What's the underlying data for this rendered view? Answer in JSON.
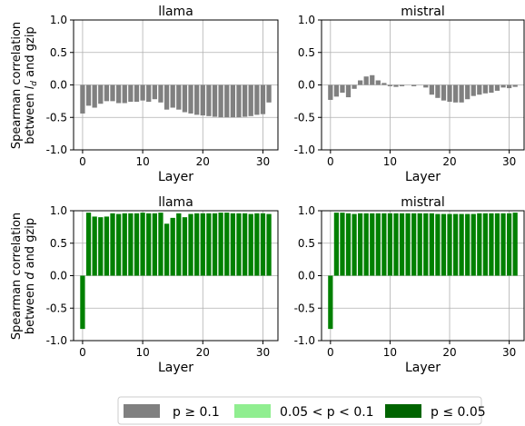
{
  "colors": {
    "not_significant": "#808080",
    "weakly_significant": "#90ee90",
    "significant": "#008000",
    "legend_significant": "#006400",
    "grid": "#b0b0b0",
    "axis": "#000000"
  },
  "figure": {
    "ylabel_top_line1": "Spearman correlation",
    "ylabel_top_line2_prefix": "between ",
    "ylabel_top_line2_symbol": "l",
    "ylabel_top_line2_sub": "d",
    "ylabel_top_line2_suffix": " and gzip",
    "ylabel_bottom_line1": "Spearman correlation",
    "ylabel_bottom_line2_prefix": "between ",
    "ylabel_bottom_line2_symbol": "d",
    "ylabel_bottom_line2_suffix": " and gzip"
  },
  "legend": {
    "placement": "bottom-center",
    "entries": [
      {
        "label": "p ≥ 0.1",
        "color_key": "not_significant"
      },
      {
        "label": "0.05 < p < 0.1",
        "color_key": "weakly_significant"
      },
      {
        "label": "p ≤ 0.05",
        "color_key": "legend_significant"
      }
    ]
  },
  "chart_data": [
    {
      "type": "bar",
      "title": "llama",
      "xlabel": "Layer",
      "ylabel": "Spearman correlation between l_d and gzip",
      "ylim": [
        -1.0,
        1.0
      ],
      "xlim": [
        -1.5,
        32.5
      ],
      "yticks": [
        "-1.0",
        "-0.5",
        "0.0",
        "0.5",
        "1.0"
      ],
      "xticks": [
        "0",
        "10",
        "20",
        "30"
      ],
      "grid": true,
      "series": [
        {
          "x": [
            0,
            1,
            2,
            3,
            4,
            5,
            6,
            7,
            8,
            9,
            10,
            11,
            12,
            13,
            14,
            15,
            16,
            17,
            18,
            19,
            20,
            21,
            22,
            23,
            24,
            25,
            26,
            27,
            28,
            29,
            30,
            31
          ],
          "values": [
            -0.44,
            -0.32,
            -0.35,
            -0.29,
            -0.25,
            -0.25,
            -0.28,
            -0.28,
            -0.26,
            -0.26,
            -0.24,
            -0.26,
            -0.22,
            -0.27,
            -0.38,
            -0.35,
            -0.38,
            -0.42,
            -0.44,
            -0.46,
            -0.47,
            -0.48,
            -0.49,
            -0.5,
            -0.5,
            -0.5,
            -0.5,
            -0.49,
            -0.48,
            -0.46,
            -0.45,
            -0.27
          ],
          "significance": "not_significant"
        }
      ]
    },
    {
      "type": "bar",
      "title": "mistral",
      "xlabel": "Layer",
      "ylim": [
        -1.0,
        1.0
      ],
      "xlim": [
        -1.5,
        32.5
      ],
      "yticks": [
        "-1.0",
        "-0.5",
        "0.0",
        "0.5",
        "1.0"
      ],
      "xticks": [
        "0",
        "10",
        "20",
        "30"
      ],
      "grid": true,
      "series": [
        {
          "x": [
            0,
            1,
            2,
            3,
            4,
            5,
            6,
            7,
            8,
            9,
            10,
            11,
            12,
            13,
            14,
            15,
            16,
            17,
            18,
            19,
            20,
            21,
            22,
            23,
            24,
            25,
            26,
            27,
            28,
            29,
            30,
            31
          ],
          "values": [
            -0.23,
            -0.18,
            -0.12,
            -0.19,
            -0.06,
            0.07,
            0.13,
            0.15,
            0.07,
            0.03,
            -0.02,
            -0.03,
            -0.02,
            0.0,
            -0.02,
            0.0,
            -0.04,
            -0.15,
            -0.2,
            -0.24,
            -0.26,
            -0.27,
            -0.27,
            -0.22,
            -0.17,
            -0.15,
            -0.13,
            -0.12,
            -0.09,
            -0.04,
            -0.05,
            -0.03
          ],
          "significance": "not_significant"
        }
      ]
    },
    {
      "type": "bar",
      "title": "llama",
      "xlabel": "Layer",
      "ylabel": "Spearman correlation between d and gzip",
      "ylim": [
        -1.0,
        1.0
      ],
      "xlim": [
        -1.5,
        32.5
      ],
      "yticks": [
        "-1.0",
        "-0.5",
        "0.0",
        "0.5",
        "1.0"
      ],
      "xticks": [
        "0",
        "10",
        "20",
        "30"
      ],
      "grid": true,
      "series": [
        {
          "x": [
            0,
            1,
            2,
            3,
            4,
            5,
            6,
            7,
            8,
            9,
            10,
            11,
            12,
            13,
            14,
            15,
            16,
            17,
            18,
            19,
            20,
            21,
            22,
            23,
            24,
            25,
            26,
            27,
            28,
            29,
            30,
            31
          ],
          "values": [
            -0.82,
            0.97,
            0.91,
            0.9,
            0.91,
            0.96,
            0.95,
            0.96,
            0.96,
            0.96,
            0.97,
            0.96,
            0.96,
            0.97,
            0.8,
            0.89,
            0.96,
            0.9,
            0.95,
            0.96,
            0.96,
            0.96,
            0.96,
            0.97,
            0.97,
            0.96,
            0.96,
            0.96,
            0.95,
            0.96,
            0.96,
            0.95
          ],
          "significance": "significant"
        }
      ]
    },
    {
      "type": "bar",
      "title": "mistral",
      "xlabel": "Layer",
      "ylim": [
        -1.0,
        1.0
      ],
      "xlim": [
        -1.5,
        32.5
      ],
      "yticks": [
        "-1.0",
        "-0.5",
        "0.0",
        "0.5",
        "1.0"
      ],
      "xticks": [
        "0",
        "10",
        "20",
        "30"
      ],
      "grid": true,
      "series": [
        {
          "x": [
            0,
            1,
            2,
            3,
            4,
            5,
            6,
            7,
            8,
            9,
            10,
            11,
            12,
            13,
            14,
            15,
            16,
            17,
            18,
            19,
            20,
            21,
            22,
            23,
            24,
            25,
            26,
            27,
            28,
            29,
            30,
            31
          ],
          "values": [
            -0.82,
            0.97,
            0.97,
            0.96,
            0.95,
            0.96,
            0.96,
            0.96,
            0.96,
            0.96,
            0.96,
            0.96,
            0.96,
            0.96,
            0.96,
            0.96,
            0.96,
            0.96,
            0.95,
            0.95,
            0.95,
            0.95,
            0.95,
            0.95,
            0.95,
            0.96,
            0.96,
            0.96,
            0.96,
            0.96,
            0.96,
            0.97
          ],
          "significance": "significant"
        }
      ]
    }
  ]
}
